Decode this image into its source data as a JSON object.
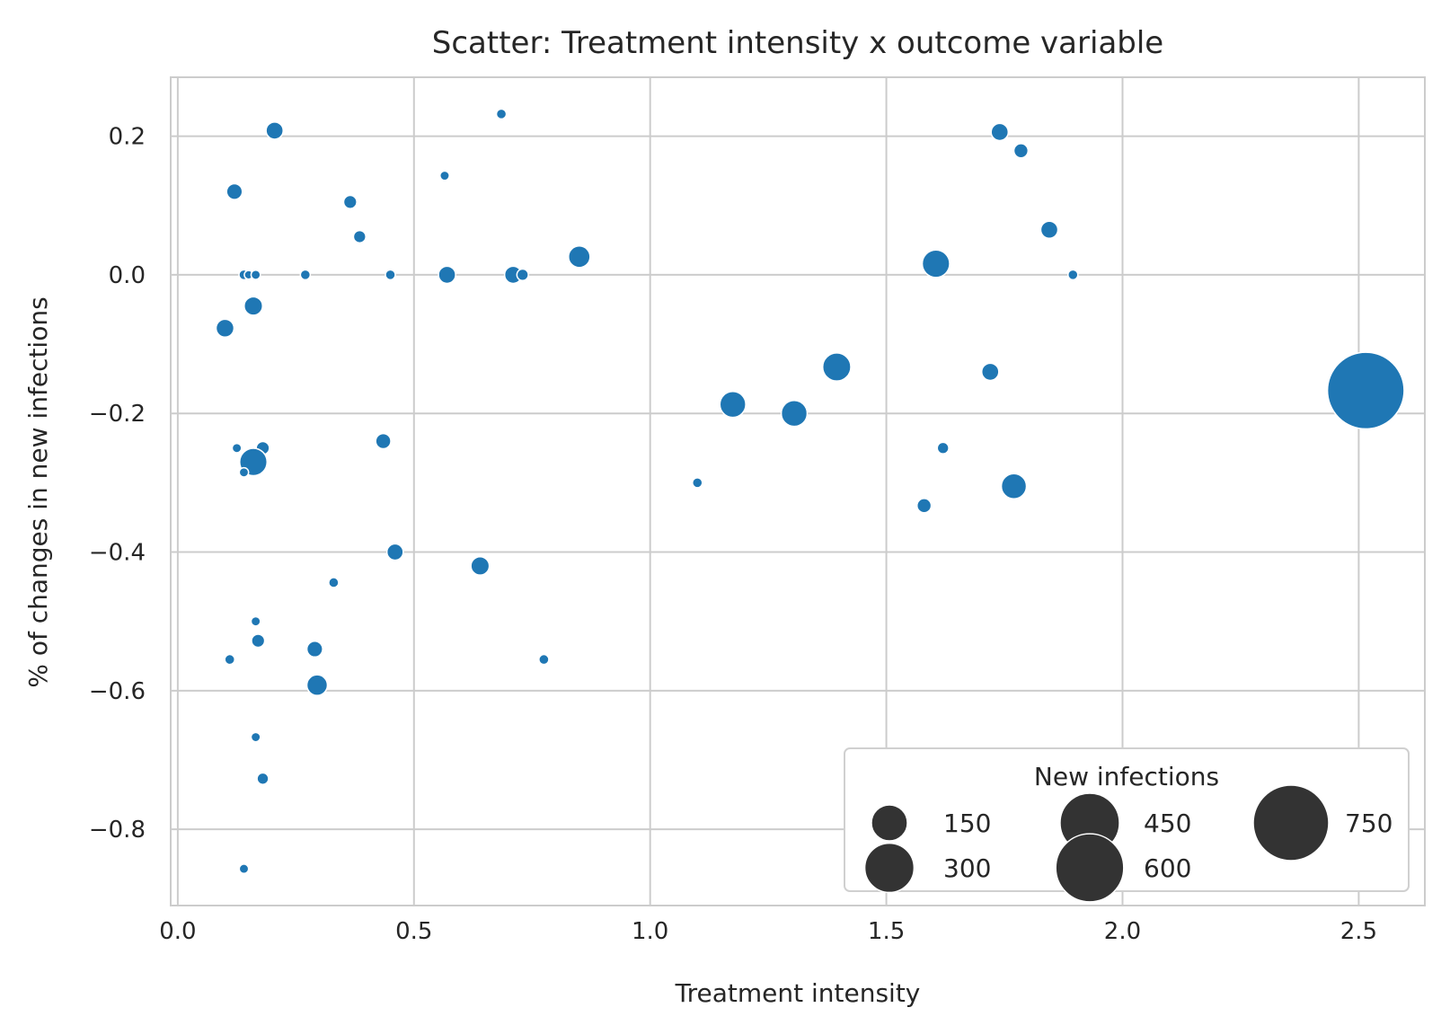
{
  "chart_data": {
    "type": "scatter",
    "title": "Scatter: Treatment intensity x outcome variable",
    "xlabel": "Treatment intensity",
    "ylabel": "% of changes in new infections",
    "xlim": [
      -0.015,
      2.64
    ],
    "ylim": [
      -0.91,
      0.285
    ],
    "xticks": [
      0.0,
      0.5,
      1.0,
      1.5,
      2.0,
      2.5
    ],
    "xtick_labels": [
      "0.0",
      "0.5",
      "1.0",
      "1.5",
      "2.0",
      "2.5"
    ],
    "yticks": [
      0.2,
      0.0,
      -0.2,
      -0.4,
      -0.6,
      -0.8
    ],
    "ytick_labels": [
      "0.2",
      "0.0",
      "−0.2",
      "−0.4",
      "−0.6",
      "−0.8"
    ],
    "grid": true,
    "color": "#1f77b4",
    "size_variable": "New infections",
    "legend": {
      "title": "New infections",
      "position": "lower-right",
      "entries": [
        {
          "label": "150",
          "size": 150
        },
        {
          "label": "300",
          "size": 300
        },
        {
          "label": "450",
          "size": 450
        },
        {
          "label": "600",
          "size": 600
        },
        {
          "label": "750",
          "size": 750
        }
      ]
    },
    "points": [
      {
        "x": 0.205,
        "y": 0.208,
        "size": 25
      },
      {
        "x": 0.685,
        "y": 0.232,
        "size": 5
      },
      {
        "x": 0.12,
        "y": 0.12,
        "size": 20
      },
      {
        "x": 0.365,
        "y": 0.105,
        "size": 12
      },
      {
        "x": 0.565,
        "y": 0.143,
        "size": 4
      },
      {
        "x": 0.385,
        "y": 0.055,
        "size": 10
      },
      {
        "x": 0.14,
        "y": 0.0,
        "size": 5
      },
      {
        "x": 0.15,
        "y": 0.0,
        "size": 3
      },
      {
        "x": 0.165,
        "y": 0.0,
        "size": 4
      },
      {
        "x": 0.27,
        "y": 0.0,
        "size": 5
      },
      {
        "x": 0.45,
        "y": 0.0,
        "size": 5
      },
      {
        "x": 0.57,
        "y": 0.0,
        "size": 25
      },
      {
        "x": 0.71,
        "y": 0.0,
        "size": 25
      },
      {
        "x": 0.73,
        "y": 0.0,
        "size": 8
      },
      {
        "x": 0.85,
        "y": 0.026,
        "size": 45
      },
      {
        "x": 0.16,
        "y": -0.045,
        "size": 30
      },
      {
        "x": 0.1,
        "y": -0.077,
        "size": 28
      },
      {
        "x": 0.125,
        "y": -0.25,
        "size": 4
      },
      {
        "x": 0.18,
        "y": -0.25,
        "size": 12
      },
      {
        "x": 0.16,
        "y": -0.27,
        "size": 80
      },
      {
        "x": 0.14,
        "y": -0.285,
        "size": 4
      },
      {
        "x": 0.435,
        "y": -0.24,
        "size": 18
      },
      {
        "x": 0.46,
        "y": -0.4,
        "size": 22
      },
      {
        "x": 0.64,
        "y": -0.42,
        "size": 30
      },
      {
        "x": 0.33,
        "y": -0.444,
        "size": 5
      },
      {
        "x": 0.165,
        "y": -0.5,
        "size": 4
      },
      {
        "x": 0.17,
        "y": -0.528,
        "size": 12
      },
      {
        "x": 0.11,
        "y": -0.555,
        "size": 5
      },
      {
        "x": 0.29,
        "y": -0.54,
        "size": 20
      },
      {
        "x": 0.295,
        "y": -0.592,
        "size": 40
      },
      {
        "x": 0.775,
        "y": -0.555,
        "size": 5
      },
      {
        "x": 0.165,
        "y": -0.667,
        "size": 4
      },
      {
        "x": 0.18,
        "y": -0.727,
        "size": 8
      },
      {
        "x": 0.14,
        "y": -0.857,
        "size": 4
      },
      {
        "x": 1.1,
        "y": -0.3,
        "size": 5
      },
      {
        "x": 1.175,
        "y": -0.187,
        "size": 70
      },
      {
        "x": 1.305,
        "y": -0.2,
        "size": 70
      },
      {
        "x": 1.395,
        "y": -0.133,
        "size": 85
      },
      {
        "x": 1.605,
        "y": 0.016,
        "size": 80
      },
      {
        "x": 1.62,
        "y": -0.25,
        "size": 8
      },
      {
        "x": 1.58,
        "y": -0.333,
        "size": 15
      },
      {
        "x": 1.72,
        "y": -0.14,
        "size": 25
      },
      {
        "x": 1.74,
        "y": 0.206,
        "size": 25
      },
      {
        "x": 1.785,
        "y": 0.179,
        "size": 15
      },
      {
        "x": 1.845,
        "y": 0.065,
        "size": 25
      },
      {
        "x": 1.895,
        "y": 0.0,
        "size": 5
      },
      {
        "x": 1.77,
        "y": -0.305,
        "size": 65
      },
      {
        "x": 2.515,
        "y": -0.167,
        "size": 775
      }
    ]
  }
}
